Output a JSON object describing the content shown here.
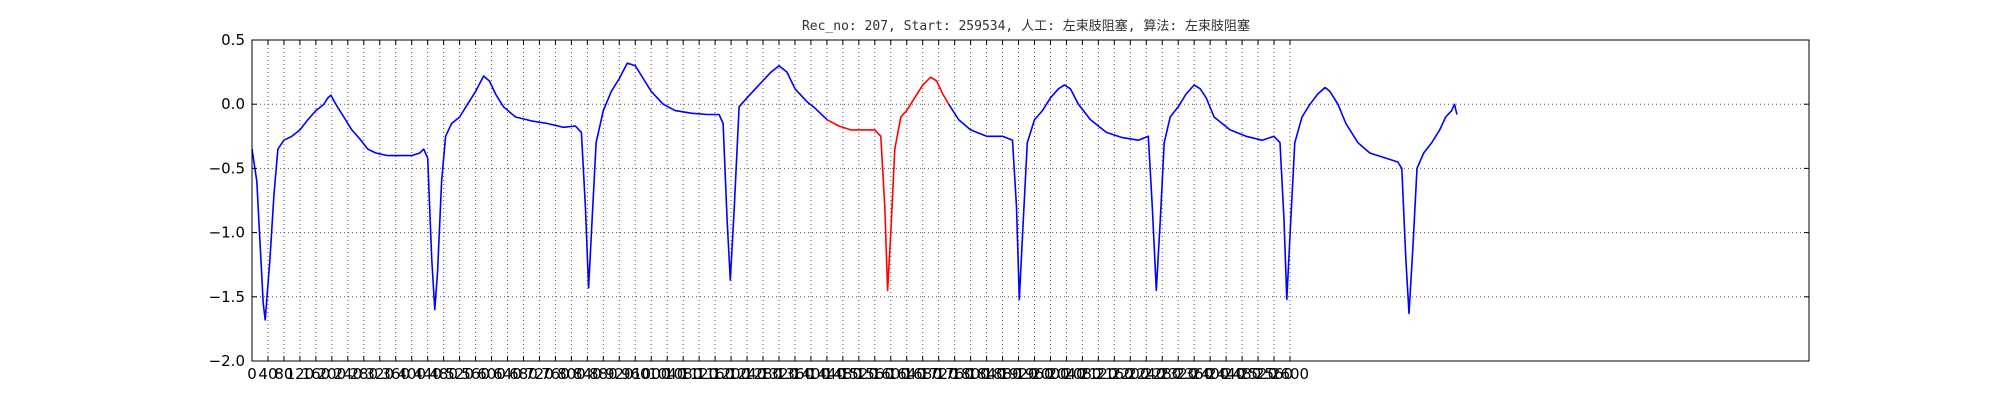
{
  "chart_data": {
    "type": "line",
    "title": "Rec_no: 207, Start: 259534, 人工: 左束肢阻塞, 算法: 左束肢阻塞",
    "xlabel": "",
    "ylabel": "",
    "xlim": [
      0,
      3900
    ],
    "ylim": [
      -2.0,
      0.5
    ],
    "grid": true,
    "x_ticks": [
      0,
      40,
      80,
      120,
      160,
      200,
      240,
      280,
      320,
      360,
      400,
      440,
      480,
      520,
      560,
      600,
      640,
      680,
      720,
      760,
      800,
      840,
      880,
      920,
      960,
      1000,
      1040,
      1080,
      1120,
      1160,
      1200,
      1240,
      1280,
      1320,
      1360,
      1400,
      1440,
      1480,
      1520,
      1560,
      1600,
      1640,
      1680,
      1720,
      1760,
      1800,
      1840,
      1880,
      1920,
      1960,
      2000,
      2040,
      2080,
      2120,
      2160,
      2200,
      2240,
      2280,
      2320,
      2360,
      2400,
      2440,
      2480,
      2520,
      2560,
      2600
    ],
    "x_tick_labels": [
      "0",
      "40",
      "80",
      "120",
      "160",
      "200",
      "240",
      "280",
      "320",
      "360",
      "400",
      "440",
      "480",
      "520",
      "560",
      "600",
      "640",
      "680",
      "720",
      "760",
      "800",
      "840",
      "880",
      "920",
      "960",
      "1000",
      "1040",
      "1080",
      "1120",
      "1160",
      "1200",
      "1240",
      "1280",
      "1320",
      "1360",
      "1400",
      "1440",
      "1480",
      "1520",
      "1560",
      "1600",
      "1640",
      "1680",
      "1720",
      "1760",
      "1800",
      "1840",
      "1880",
      "1920",
      "1960",
      "2000",
      "2040",
      "2080",
      "2120",
      "2160",
      "2200",
      "2240",
      "2280",
      "2320",
      "2360",
      "2400",
      "2440",
      "2480",
      "2520",
      "2560",
      "2600"
    ],
    "y_ticks": [
      -2.0,
      -1.5,
      -1.0,
      -0.5,
      0.0,
      0.5
    ],
    "y_tick_labels": [
      "−2.0",
      "−1.5",
      "−1.0",
      "−0.5",
      "0.0",
      "0.5"
    ],
    "series": [
      {
        "color": "#0000ff",
        "segments": [
          [
            [
              0,
              -0.35
            ],
            [
              12,
              -0.6
            ],
            [
              28,
              -1.55
            ],
            [
              33,
              -1.68
            ],
            [
              45,
              -1.2
            ],
            [
              55,
              -0.7
            ],
            [
              65,
              -0.35
            ],
            [
              80,
              -0.28
            ],
            [
              100,
              -0.25
            ],
            [
              120,
              -0.2
            ],
            [
              140,
              -0.12
            ],
            [
              160,
              -0.05
            ],
            [
              180,
              0.0
            ],
            [
              190,
              0.05
            ],
            [
              198,
              0.07
            ],
            [
              210,
              0.0
            ],
            [
              230,
              -0.1
            ],
            [
              250,
              -0.2
            ],
            [
              270,
              -0.27
            ],
            [
              290,
              -0.35
            ],
            [
              310,
              -0.38
            ],
            [
              340,
              -0.4
            ],
            [
              370,
              -0.4
            ],
            [
              400,
              -0.4
            ],
            [
              420,
              -0.38
            ],
            [
              430,
              -0.35
            ],
            [
              440,
              -0.42
            ],
            [
              450,
              -1.2
            ],
            [
              458,
              -1.6
            ],
            [
              465,
              -1.3
            ],
            [
              475,
              -0.6
            ],
            [
              485,
              -0.25
            ],
            [
              500,
              -0.15
            ],
            [
              520,
              -0.1
            ],
            [
              540,
              0.0
            ],
            [
              560,
              0.1
            ],
            [
              580,
              0.22
            ],
            [
              595,
              0.18
            ],
            [
              610,
              0.08
            ],
            [
              630,
              -0.02
            ],
            [
              660,
              -0.1
            ],
            [
              700,
              -0.13
            ],
            [
              740,
              -0.15
            ],
            [
              780,
              -0.18
            ],
            [
              810,
              -0.17
            ],
            [
              825,
              -0.22
            ],
            [
              835,
              -0.8
            ],
            [
              843,
              -1.43
            ],
            [
              852,
              -0.9
            ],
            [
              862,
              -0.3
            ],
            [
              880,
              -0.05
            ],
            [
              900,
              0.1
            ],
            [
              920,
              0.2
            ],
            [
              940,
              0.32
            ],
            [
              960,
              0.3
            ],
            [
              980,
              0.2
            ],
            [
              1000,
              0.1
            ],
            [
              1030,
              0.0
            ],
            [
              1060,
              -0.05
            ],
            [
              1100,
              -0.07
            ],
            [
              1140,
              -0.08
            ],
            [
              1170,
              -0.08
            ],
            [
              1180,
              -0.15
            ],
            [
              1190,
              -0.9
            ],
            [
              1198,
              -1.37
            ],
            [
              1208,
              -0.8
            ],
            [
              1220,
              -0.02
            ],
            [
              1240,
              0.05
            ],
            [
              1270,
              0.15
            ],
            [
              1300,
              0.25
            ],
            [
              1320,
              0.3
            ],
            [
              1340,
              0.25
            ],
            [
              1360,
              0.12
            ],
            [
              1390,
              0.02
            ],
            [
              1410,
              -0.03
            ],
            [
              1440,
              -0.12
            ]
          ]
        ]
      },
      {
        "color": "#ff0000",
        "segments": [
          [
            [
              1440,
              -0.12
            ],
            [
              1470,
              -0.17
            ],
            [
              1500,
              -0.2
            ],
            [
              1530,
              -0.2
            ],
            [
              1560,
              -0.2
            ],
            [
              1575,
              -0.25
            ],
            [
              1585,
              -0.8
            ],
            [
              1592,
              -1.45
            ],
            [
              1600,
              -1.0
            ],
            [
              1610,
              -0.35
            ],
            [
              1625,
              -0.1
            ],
            [
              1640,
              -0.05
            ],
            [
              1660,
              0.05
            ],
            [
              1680,
              0.15
            ],
            [
              1700,
              0.21
            ],
            [
              1715,
              0.18
            ],
            [
              1730,
              0.08
            ],
            [
              1745,
              0.0
            ]
          ]
        ]
      },
      {
        "color": "#0000ff",
        "segments": [
          [
            [
              1745,
              0.0
            ],
            [
              1770,
              -0.12
            ],
            [
              1800,
              -0.2
            ],
            [
              1840,
              -0.25
            ],
            [
              1880,
              -0.25
            ],
            [
              1905,
              -0.28
            ],
            [
              1915,
              -0.8
            ],
            [
              1922,
              -1.52
            ],
            [
              1932,
              -0.9
            ],
            [
              1942,
              -0.3
            ],
            [
              1960,
              -0.12
            ],
            [
              1980,
              -0.05
            ],
            [
              2000,
              0.05
            ],
            [
              2020,
              0.12
            ],
            [
              2035,
              0.15
            ],
            [
              2050,
              0.12
            ],
            [
              2070,
              0.0
            ],
            [
              2100,
              -0.12
            ],
            [
              2140,
              -0.22
            ],
            [
              2180,
              -0.26
            ],
            [
              2220,
              -0.28
            ],
            [
              2245,
              -0.25
            ],
            [
              2255,
              -0.8
            ],
            [
              2265,
              -1.45
            ],
            [
              2275,
              -0.9
            ],
            [
              2285,
              -0.3
            ],
            [
              2300,
              -0.1
            ],
            [
              2320,
              -0.02
            ],
            [
              2340,
              0.08
            ],
            [
              2360,
              0.15
            ],
            [
              2375,
              0.12
            ],
            [
              2390,
              0.05
            ],
            [
              2410,
              -0.1
            ],
            [
              2450,
              -0.2
            ],
            [
              2490,
              -0.25
            ],
            [
              2530,
              -0.28
            ],
            [
              2560,
              -0.25
            ],
            [
              2575,
              -0.3
            ],
            [
              2585,
              -0.9
            ],
            [
              2592,
              -1.52
            ],
            [
              2602,
              -0.9
            ],
            [
              2612,
              -0.3
            ],
            [
              2630,
              -0.1
            ],
            [
              2650,
              0.0
            ],
            [
              2670,
              0.08
            ],
            [
              2688,
              0.13
            ],
            [
              2700,
              0.1
            ],
            [
              2720,
              0.0
            ],
            [
              2740,
              -0.15
            ],
            [
              2770,
              -0.3
            ],
            [
              2800,
              -0.38
            ],
            [
              2840,
              -0.42
            ],
            [
              2870,
              -0.45
            ],
            [
              2880,
              -0.5
            ],
            [
              2890,
              -1.2
            ],
            [
              2898,
              -1.63
            ],
            [
              2908,
              -1.1
            ],
            [
              2918,
              -0.5
            ],
            [
              2935,
              -0.38
            ],
            [
              2955,
              -0.3
            ],
            [
              2975,
              -0.2
            ],
            [
              2990,
              -0.1
            ],
            [
              3005,
              -0.05
            ],
            [
              3012,
              0.0
            ],
            [
              3018,
              -0.08
            ]
          ]
        ]
      }
    ]
  }
}
